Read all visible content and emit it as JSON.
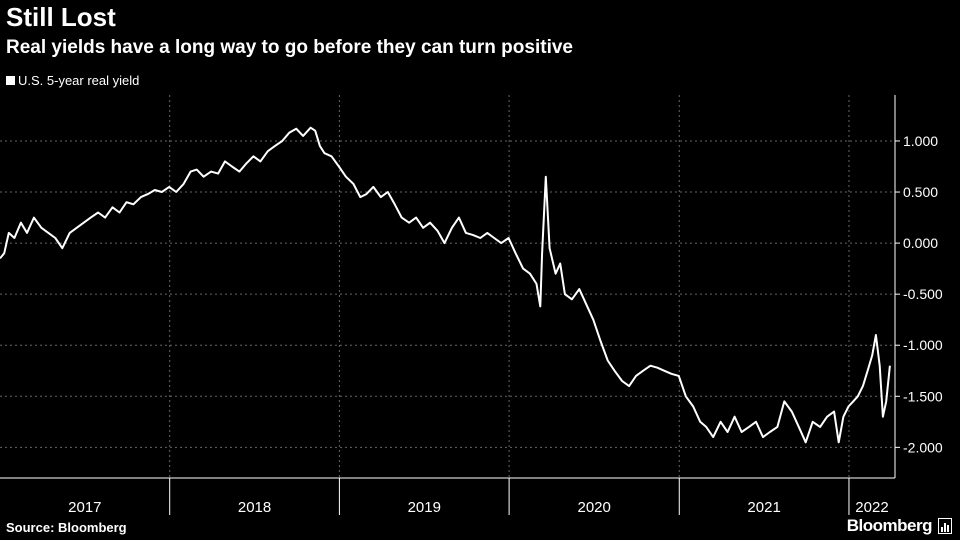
{
  "title": "Still Lost",
  "subtitle": "Real yields have a long way to go before they can turn positive",
  "legend_label": "U.S. 5-year real yield",
  "source": "Source: Bloomberg",
  "brand": "Bloomberg",
  "brand_icon": "chart-icon",
  "colors": {
    "background": "#000000",
    "line": "#ffffff",
    "grid": "#666666",
    "text": "#ffffff"
  },
  "chart_data": {
    "type": "line",
    "title": "Still Lost",
    "subtitle": "Real yields have a long way to go before they can turn positive",
    "series": [
      {
        "name": "U.S. 5-year real yield",
        "points": [
          [
            "2017-01-01",
            -0.15
          ],
          [
            "2017-01-10",
            -0.1
          ],
          [
            "2017-01-20",
            0.1
          ],
          [
            "2017-02-01",
            0.05
          ],
          [
            "2017-02-15",
            0.2
          ],
          [
            "2017-02-28",
            0.1
          ],
          [
            "2017-03-15",
            0.25
          ],
          [
            "2017-03-31",
            0.15
          ],
          [
            "2017-04-15",
            0.1
          ],
          [
            "2017-04-30",
            0.05
          ],
          [
            "2017-05-15",
            -0.05
          ],
          [
            "2017-05-31",
            0.1
          ],
          [
            "2017-06-15",
            0.15
          ],
          [
            "2017-06-30",
            0.2
          ],
          [
            "2017-07-15",
            0.25
          ],
          [
            "2017-07-31",
            0.3
          ],
          [
            "2017-08-15",
            0.25
          ],
          [
            "2017-08-31",
            0.35
          ],
          [
            "2017-09-15",
            0.3
          ],
          [
            "2017-09-30",
            0.4
          ],
          [
            "2017-10-15",
            0.38
          ],
          [
            "2017-10-31",
            0.45
          ],
          [
            "2017-11-15",
            0.48
          ],
          [
            "2017-11-30",
            0.52
          ],
          [
            "2017-12-15",
            0.5
          ],
          [
            "2017-12-31",
            0.55
          ],
          [
            "2018-01-15",
            0.5
          ],
          [
            "2018-01-31",
            0.58
          ],
          [
            "2018-02-15",
            0.7
          ],
          [
            "2018-02-28",
            0.72
          ],
          [
            "2018-03-15",
            0.65
          ],
          [
            "2018-03-31",
            0.7
          ],
          [
            "2018-04-15",
            0.68
          ],
          [
            "2018-04-30",
            0.8
          ],
          [
            "2018-05-15",
            0.75
          ],
          [
            "2018-05-31",
            0.7
          ],
          [
            "2018-06-15",
            0.78
          ],
          [
            "2018-06-30",
            0.85
          ],
          [
            "2018-07-15",
            0.8
          ],
          [
            "2018-07-31",
            0.9
          ],
          [
            "2018-08-15",
            0.95
          ],
          [
            "2018-08-31",
            1.0
          ],
          [
            "2018-09-15",
            1.08
          ],
          [
            "2018-09-30",
            1.12
          ],
          [
            "2018-10-15",
            1.05
          ],
          [
            "2018-10-31",
            1.13
          ],
          [
            "2018-11-10",
            1.1
          ],
          [
            "2018-11-20",
            0.95
          ],
          [
            "2018-11-30",
            0.88
          ],
          [
            "2018-12-15",
            0.85
          ],
          [
            "2018-12-31",
            0.75
          ],
          [
            "2019-01-15",
            0.65
          ],
          [
            "2019-01-31",
            0.58
          ],
          [
            "2019-02-15",
            0.45
          ],
          [
            "2019-02-28",
            0.48
          ],
          [
            "2019-03-15",
            0.55
          ],
          [
            "2019-03-31",
            0.45
          ],
          [
            "2019-04-15",
            0.5
          ],
          [
            "2019-04-30",
            0.38
          ],
          [
            "2019-05-15",
            0.25
          ],
          [
            "2019-05-31",
            0.2
          ],
          [
            "2019-06-15",
            0.25
          ],
          [
            "2019-06-30",
            0.15
          ],
          [
            "2019-07-15",
            0.2
          ],
          [
            "2019-07-31",
            0.12
          ],
          [
            "2019-08-15",
            0.0
          ],
          [
            "2019-08-31",
            0.15
          ],
          [
            "2019-09-15",
            0.25
          ],
          [
            "2019-09-30",
            0.1
          ],
          [
            "2019-10-15",
            0.08
          ],
          [
            "2019-10-31",
            0.05
          ],
          [
            "2019-11-15",
            0.1
          ],
          [
            "2019-11-30",
            0.05
          ],
          [
            "2019-12-15",
            0.0
          ],
          [
            "2019-12-31",
            0.05
          ],
          [
            "2020-01-15",
            -0.1
          ],
          [
            "2020-01-31",
            -0.25
          ],
          [
            "2020-02-15",
            -0.3
          ],
          [
            "2020-02-29",
            -0.4
          ],
          [
            "2020-03-08",
            -0.62
          ],
          [
            "2020-03-12",
            -0.1
          ],
          [
            "2020-03-20",
            0.65
          ],
          [
            "2020-03-28",
            -0.05
          ],
          [
            "2020-04-10",
            -0.3
          ],
          [
            "2020-04-20",
            -0.2
          ],
          [
            "2020-04-30",
            -0.5
          ],
          [
            "2020-05-15",
            -0.55
          ],
          [
            "2020-05-31",
            -0.45
          ],
          [
            "2020-06-15",
            -0.6
          ],
          [
            "2020-06-30",
            -0.75
          ],
          [
            "2020-07-15",
            -0.95
          ],
          [
            "2020-07-31",
            -1.15
          ],
          [
            "2020-08-15",
            -1.25
          ],
          [
            "2020-08-31",
            -1.35
          ],
          [
            "2020-09-15",
            -1.4
          ],
          [
            "2020-09-30",
            -1.3
          ],
          [
            "2020-10-15",
            -1.25
          ],
          [
            "2020-10-31",
            -1.2
          ],
          [
            "2020-11-15",
            -1.22
          ],
          [
            "2020-11-30",
            -1.25
          ],
          [
            "2020-12-15",
            -1.28
          ],
          [
            "2020-12-31",
            -1.3
          ],
          [
            "2021-01-15",
            -1.5
          ],
          [
            "2021-01-31",
            -1.6
          ],
          [
            "2021-02-15",
            -1.75
          ],
          [
            "2021-02-28",
            -1.8
          ],
          [
            "2021-03-15",
            -1.9
          ],
          [
            "2021-03-31",
            -1.75
          ],
          [
            "2021-04-15",
            -1.85
          ],
          [
            "2021-04-30",
            -1.7
          ],
          [
            "2021-05-15",
            -1.85
          ],
          [
            "2021-05-31",
            -1.8
          ],
          [
            "2021-06-15",
            -1.75
          ],
          [
            "2021-06-30",
            -1.9
          ],
          [
            "2021-07-15",
            -1.85
          ],
          [
            "2021-07-31",
            -1.8
          ],
          [
            "2021-08-15",
            -1.55
          ],
          [
            "2021-08-31",
            -1.65
          ],
          [
            "2021-09-15",
            -1.8
          ],
          [
            "2021-09-30",
            -1.95
          ],
          [
            "2021-10-15",
            -1.75
          ],
          [
            "2021-10-31",
            -1.8
          ],
          [
            "2021-11-15",
            -1.7
          ],
          [
            "2021-11-30",
            -1.65
          ],
          [
            "2021-12-10",
            -1.95
          ],
          [
            "2021-12-20",
            -1.7
          ],
          [
            "2021-12-31",
            -1.6
          ],
          [
            "2022-01-10",
            -1.55
          ],
          [
            "2022-01-20",
            -1.5
          ],
          [
            "2022-01-31",
            -1.4
          ],
          [
            "2022-02-10",
            -1.25
          ],
          [
            "2022-02-20",
            -1.1
          ],
          [
            "2022-02-28",
            -0.9
          ],
          [
            "2022-03-08",
            -1.2
          ],
          [
            "2022-03-15",
            -1.7
          ],
          [
            "2022-03-22",
            -1.55
          ],
          [
            "2022-03-30",
            -1.2
          ]
        ]
      }
    ],
    "x_axis": {
      "type": "date",
      "range": [
        "2017-01-01",
        "2022-04-10"
      ],
      "tick_labels": [
        "2017",
        "2018",
        "2019",
        "2020",
        "2021",
        "2022"
      ]
    },
    "y_axis": {
      "range": [
        -2.3,
        1.45
      ],
      "position": "right",
      "ticks": [
        1.0,
        0.5,
        0.0,
        -0.5,
        -1.0,
        -1.5,
        -2.0
      ],
      "tick_labels": [
        "1.000",
        "0.500",
        "0.000",
        "-0.500",
        "-1.000",
        "-1.500",
        "-2.000"
      ]
    },
    "grid": true,
    "legend_placement": "top-left"
  }
}
